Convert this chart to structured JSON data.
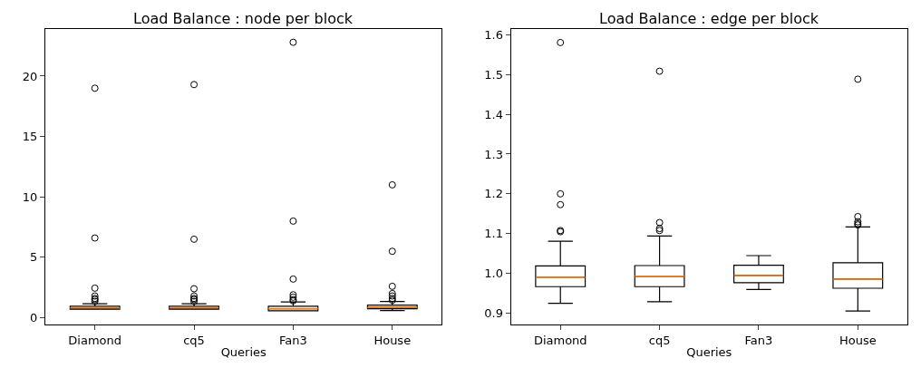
{
  "chart_data": [
    {
      "type": "box",
      "title": "Load Balance : node per block",
      "xlabel": "Queries",
      "categories": [
        "Diamond",
        "cq5",
        "Fan3",
        "House"
      ],
      "ylim": [
        -0.56,
        23.9
      ],
      "yticks": [
        0,
        5,
        10,
        15,
        20
      ],
      "boxes": [
        {
          "low": 0.7,
          "q1": 0.7,
          "median": 0.8,
          "q3": 0.95,
          "high": 1.15,
          "outliers": [
            19.0,
            6.6,
            2.45,
            1.8,
            1.6,
            1.5,
            1.35
          ]
        },
        {
          "low": 0.7,
          "q1": 0.7,
          "median": 0.8,
          "q3": 0.95,
          "high": 1.15,
          "outliers": [
            19.3,
            6.5,
            2.4,
            1.8,
            1.6,
            1.5,
            1.35
          ]
        },
        {
          "low": 0.58,
          "q1": 0.58,
          "median": 0.75,
          "q3": 0.95,
          "high": 1.3,
          "outliers": [
            22.8,
            8.0,
            3.2,
            1.9,
            1.7,
            1.5,
            1.4
          ]
        },
        {
          "low": 0.6,
          "q1": 0.75,
          "median": 0.85,
          "q3": 1.05,
          "high": 1.35,
          "outliers": [
            11.0,
            5.5,
            2.6,
            2.0,
            1.8,
            1.6,
            1.45
          ]
        }
      ]
    },
    {
      "type": "box",
      "title": "Load Balance : edge per block",
      "xlabel": "Queries",
      "categories": [
        "Diamond",
        "cq5",
        "Fan3",
        "House"
      ],
      "ylim": [
        0.872,
        1.614
      ],
      "yticks": [
        0.9,
        {
          "value": 1,
          "label": "1.0"
        },
        1.1,
        1.2,
        1.3,
        1.4,
        1.5,
        1.6
      ],
      "boxes": [
        {
          "low": 0.925,
          "q1": 0.967,
          "median": 0.99,
          "q3": 1.019,
          "high": 1.081,
          "outliers": [
            1.105,
            1.108,
            1.173,
            1.2,
            1.58
          ]
        },
        {
          "low": 0.929,
          "q1": 0.967,
          "median": 0.993,
          "q3": 1.02,
          "high": 1.094,
          "outliers": [
            1.108,
            1.113,
            1.128,
            1.508
          ]
        },
        {
          "low": 0.96,
          "q1": 0.977,
          "median": 0.995,
          "q3": 1.021,
          "high": 1.045
        },
        {
          "low": 0.906,
          "q1": 0.963,
          "median": 0.986,
          "q3": 1.027,
          "high": 1.117,
          "outliers": [
            1.122,
            1.125,
            1.13,
            1.143,
            1.488
          ]
        }
      ]
    }
  ]
}
